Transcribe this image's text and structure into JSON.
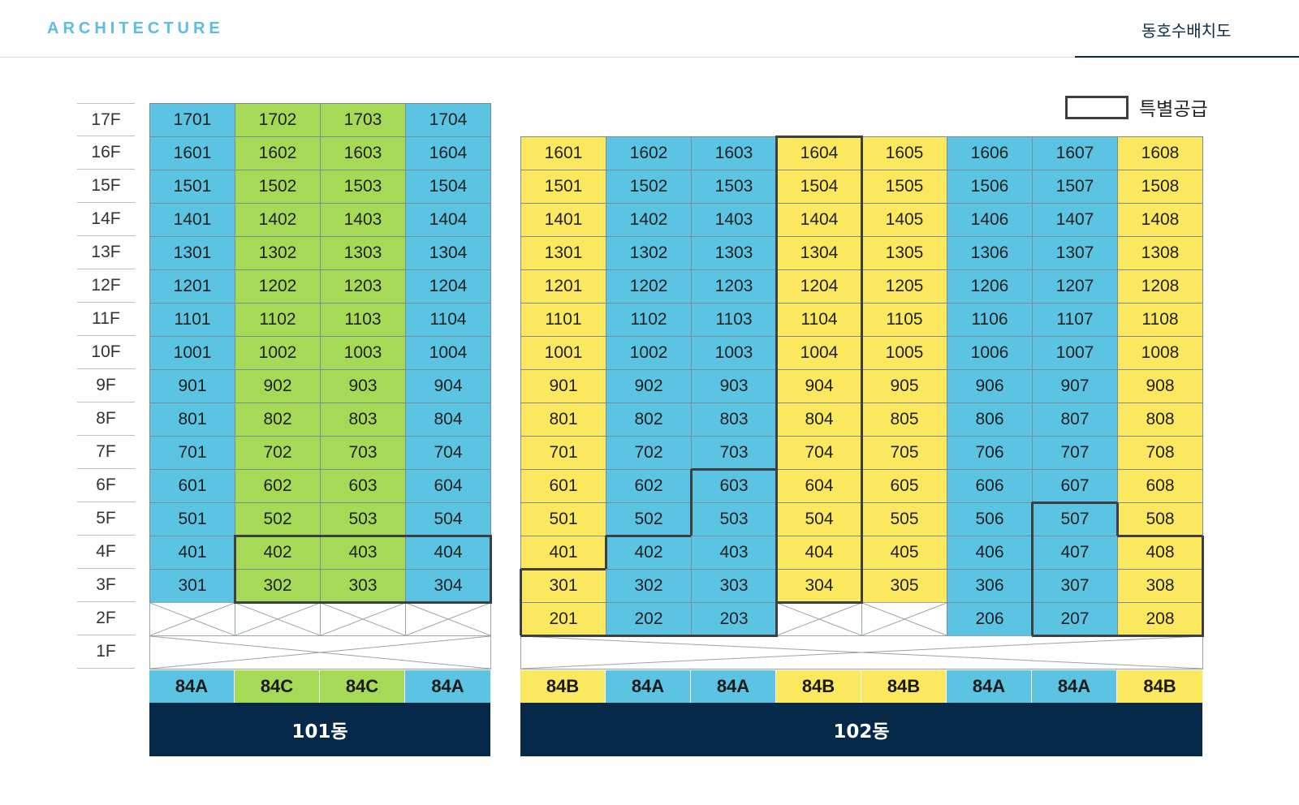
{
  "header": {
    "brand": "ARCHITECTURE",
    "tab": "동호수배치도"
  },
  "legend": {
    "label": "특별공급"
  },
  "floors": [
    "17F",
    "16F",
    "15F",
    "14F",
    "13F",
    "12F",
    "11F",
    "10F",
    "9F",
    "8F",
    "7F",
    "6F",
    "5F",
    "4F",
    "3F",
    "2F",
    "1F"
  ],
  "colors": {
    "blue": "#5bc4e3",
    "green": "#a5d956",
    "yellow": "#fce85e",
    "navy": "#06294a",
    "outline": "#3d4043"
  },
  "buildings": [
    {
      "name": "101동",
      "top_floor": 17,
      "types": [
        "84A",
        "84C",
        "84C",
        "84A"
      ],
      "type_colors": [
        "blue",
        "green",
        "green",
        "blue"
      ],
      "empty_floor2_columns": [
        1,
        2,
        3,
        4
      ]
    },
    {
      "name": "102동",
      "top_floor": 16,
      "types": [
        "84B",
        "84A",
        "84A",
        "84B",
        "84B",
        "84A",
        "84A",
        "84B"
      ],
      "type_colors": [
        "yellow",
        "blue",
        "blue",
        "yellow",
        "yellow",
        "blue",
        "blue",
        "yellow"
      ],
      "empty_floor2_columns": [
        4,
        5
      ]
    }
  ],
  "special_supply": [
    {
      "building": "101동",
      "units": [
        "402",
        "403",
        "404",
        "302",
        "303",
        "304"
      ]
    },
    {
      "building": "102동",
      "units": [
        "1604",
        "1504",
        "1404",
        "1304",
        "1204",
        "1104",
        "1004",
        "904",
        "804",
        "704",
        "604",
        "504",
        "404",
        "304",
        "301",
        "201",
        "202",
        "203",
        "402",
        "403",
        "302",
        "303",
        "603",
        "503",
        "507",
        "407",
        "307",
        "207",
        "408",
        "308",
        "208"
      ]
    }
  ]
}
